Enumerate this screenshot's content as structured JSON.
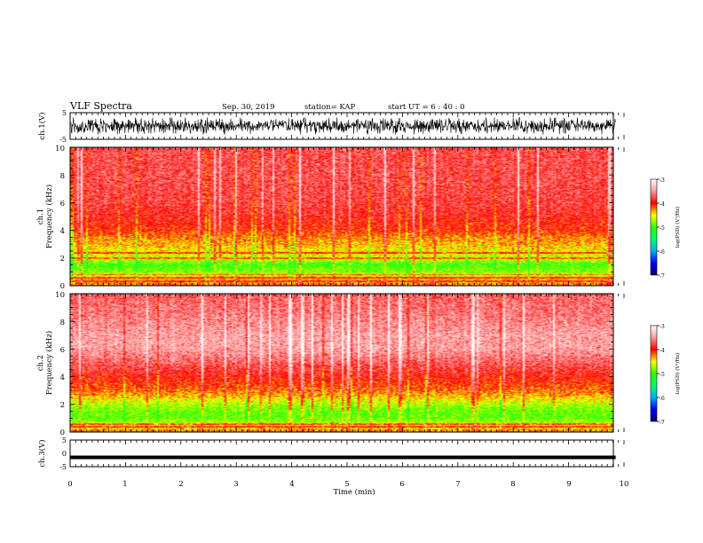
{
  "header": {
    "title": "VLF Spectra",
    "date": "Sep. 30, 2019",
    "station": "station= KAP",
    "start": "start  UT =   6  : 40 : 0"
  },
  "chart_data": [
    {
      "type": "line",
      "name": "ch1-waveform",
      "ylabel": "ch.1(V)",
      "ylim": [
        -5,
        5
      ],
      "yticks": [
        "5",
        "-5"
      ],
      "xlim": [
        0,
        10
      ],
      "amplitude": [
        -3.2,
        3.2
      ]
    },
    {
      "type": "heatmap",
      "name": "ch1-spectrogram",
      "ylabel_line1": "ch.1",
      "ylabel_line2": "Frequency  (kHz)",
      "ylim": [
        0,
        10
      ],
      "yticks": [
        "0",
        "2",
        "4",
        "6",
        "8",
        "10"
      ],
      "xlim": [
        0,
        9.85
      ],
      "data_end_min": 9.85,
      "profile": {
        "freq_khz": [
          0,
          0.5,
          1.0,
          1.5,
          2.0,
          2.5,
          3.0,
          3.5,
          4.0,
          5.0,
          6.0,
          8.0,
          10.0
        ],
        "log_psd": [
          -4.2,
          -4.4,
          -4.8,
          -5.0,
          -4.6,
          -4.5,
          -4.35,
          -4.25,
          -4.05,
          -3.9,
          -3.8,
          -3.75,
          -3.75
        ]
      },
      "lines_khz": [
        0.3,
        0.55,
        0.8,
        2.0,
        2.35
      ]
    },
    {
      "type": "heatmap",
      "name": "ch2-spectrogram",
      "ylabel_line1": "ch.2",
      "ylabel_line2": "Frequency  (kHz)",
      "ylim": [
        0,
        10
      ],
      "yticks": [
        "0",
        "2",
        "4",
        "6",
        "8",
        "10"
      ],
      "xlim": [
        0,
        9.85
      ],
      "data_end_min": 9.85,
      "profile": {
        "freq_khz": [
          0,
          0.5,
          1.0,
          1.5,
          2.0,
          2.5,
          3.0,
          4.0,
          5.0,
          6.0,
          7.0,
          8.5,
          10.0
        ],
        "log_psd": [
          -4.2,
          -4.6,
          -4.9,
          -4.9,
          -4.7,
          -4.4,
          -4.2,
          -3.95,
          -3.7,
          -3.45,
          -3.45,
          -3.6,
          -3.7
        ]
      },
      "lines_khz": [
        0.4,
        0.6
      ]
    },
    {
      "type": "line",
      "name": "ch3-waveform",
      "ylabel": "ch.3(V)",
      "ylim": [
        -5,
        5
      ],
      "yticks": [
        "5",
        "0",
        "-5"
      ],
      "xlim": [
        0,
        10
      ],
      "level": -1.5,
      "xlabel": "Time  (min)",
      "xticks": [
        "0",
        "1",
        "2",
        "3",
        "4",
        "5",
        "6",
        "7",
        "8",
        "9",
        "10"
      ]
    }
  ],
  "colorbar": {
    "label": "log(PSD) (V²/Hz)",
    "range": [
      -7,
      -3
    ],
    "ticks": [
      "-3",
      "-4",
      "-5",
      "-6",
      "-7"
    ],
    "colors": [
      "#000066",
      "#0000ff",
      "#00aaff",
      "#00ff66",
      "#33ff00",
      "#ffff00",
      "#ff0000",
      "#ff9999",
      "#ffffff"
    ]
  }
}
